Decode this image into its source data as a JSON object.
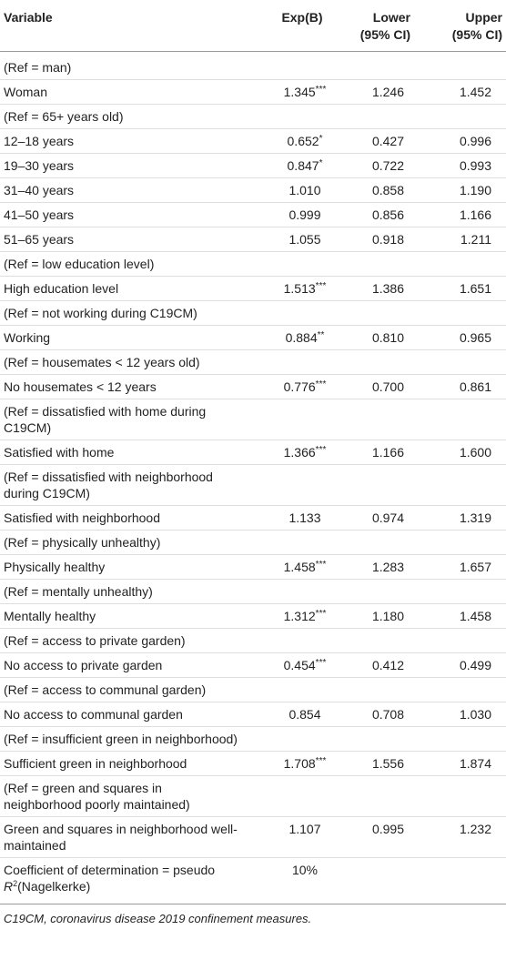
{
  "headers": {
    "variable": "Variable",
    "exp": "Exp(B)",
    "lower_1": "Lower",
    "lower_2": "(95% CI)",
    "upper_1": "Upper",
    "upper_2": "(95% CI)"
  },
  "rows": [
    {
      "label": "(Ref = man)",
      "exp": "",
      "sig": "",
      "lower": "",
      "upper": ""
    },
    {
      "label": "Woman",
      "exp": "1.345",
      "sig": "***",
      "lower": "1.246",
      "upper": "1.452"
    },
    {
      "label": "(Ref = 65+ years old)",
      "exp": "",
      "sig": "",
      "lower": "",
      "upper": ""
    },
    {
      "label": "12–18 years",
      "exp": "0.652",
      "sig": "*",
      "lower": "0.427",
      "upper": "0.996"
    },
    {
      "label": "19–30 years",
      "exp": "0.847",
      "sig": "*",
      "lower": "0.722",
      "upper": "0.993"
    },
    {
      "label": "31–40 years",
      "exp": "1.010",
      "sig": "",
      "lower": "0.858",
      "upper": "1.190"
    },
    {
      "label": "41–50 years",
      "exp": "0.999",
      "sig": "",
      "lower": "0.856",
      "upper": "1.166"
    },
    {
      "label": "51–65 years",
      "exp": "1.055",
      "sig": "",
      "lower": "0.918",
      "upper": "1.211"
    },
    {
      "label": "(Ref = low education level)",
      "exp": "",
      "sig": "",
      "lower": "",
      "upper": ""
    },
    {
      "label": "High education level",
      "exp": "1.513",
      "sig": "***",
      "lower": "1.386",
      "upper": "1.651"
    },
    {
      "label": "(Ref = not working during C19CM)",
      "exp": "",
      "sig": "",
      "lower": "",
      "upper": ""
    },
    {
      "label": "Working",
      "exp": "0.884",
      "sig": "**",
      "lower": "0.810",
      "upper": "0.965"
    },
    {
      "label": "(Ref = housemates < 12 years old)",
      "exp": "",
      "sig": "",
      "lower": "",
      "upper": ""
    },
    {
      "label": "No housemates < 12 years",
      "exp": "0.776",
      "sig": "***",
      "lower": "0.700",
      "upper": "0.861"
    },
    {
      "label": "(Ref = dissatisfied with home during C19CM)",
      "exp": "",
      "sig": "",
      "lower": "",
      "upper": ""
    },
    {
      "label": "Satisfied with home",
      "exp": "1.366",
      "sig": "***",
      "lower": "1.166",
      "upper": "1.600"
    },
    {
      "label": "(Ref = dissatisfied with neighborhood during C19CM)",
      "exp": "",
      "sig": "",
      "lower": "",
      "upper": ""
    },
    {
      "label": "Satisfied with neighborhood",
      "exp": "1.133",
      "sig": "",
      "lower": "0.974",
      "upper": "1.319"
    },
    {
      "label": "(Ref = physically unhealthy)",
      "exp": "",
      "sig": "",
      "lower": "",
      "upper": ""
    },
    {
      "label": "Physically healthy",
      "exp": "1.458",
      "sig": "***",
      "lower": "1.283",
      "upper": "1.657"
    },
    {
      "label": "(Ref = mentally unhealthy)",
      "exp": "",
      "sig": "",
      "lower": "",
      "upper": ""
    },
    {
      "label": "Mentally healthy",
      "exp": "1.312",
      "sig": "***",
      "lower": "1.180",
      "upper": "1.458"
    },
    {
      "label": "(Ref = access to private garden)",
      "exp": "",
      "sig": "",
      "lower": "",
      "upper": ""
    },
    {
      "label": "No access to private garden",
      "exp": "0.454",
      "sig": "***",
      "lower": "0.412",
      "upper": "0.499"
    },
    {
      "label": "(Ref = access to communal garden)",
      "exp": "",
      "sig": "",
      "lower": "",
      "upper": ""
    },
    {
      "label": "No access to communal garden",
      "exp": "0.854",
      "sig": "",
      "lower": "0.708",
      "upper": "1.030"
    },
    {
      "label": "(Ref = insufficient green in neighborhood)",
      "exp": "",
      "sig": "",
      "lower": "",
      "upper": ""
    },
    {
      "label": "Sufficient green in neighborhood",
      "exp": "1.708",
      "sig": "***",
      "lower": "1.556",
      "upper": "1.874"
    },
    {
      "label": "(Ref = green and squares in neighborhood poorly maintained)",
      "exp": "",
      "sig": "",
      "lower": "",
      "upper": ""
    },
    {
      "label": "Green and squares in neighborhood well-maintained",
      "exp": "1.107",
      "sig": "",
      "lower": "0.995",
      "upper": "1.232"
    }
  ],
  "final_row": {
    "label_main": "Coefficient of determination = pseudo ",
    "label_r": "R",
    "label_sup": "2",
    "label_tail": "(Nagelkerke)",
    "exp": "10%"
  },
  "footnote": "C19CM, coronavirus disease 2019 confinement measures."
}
